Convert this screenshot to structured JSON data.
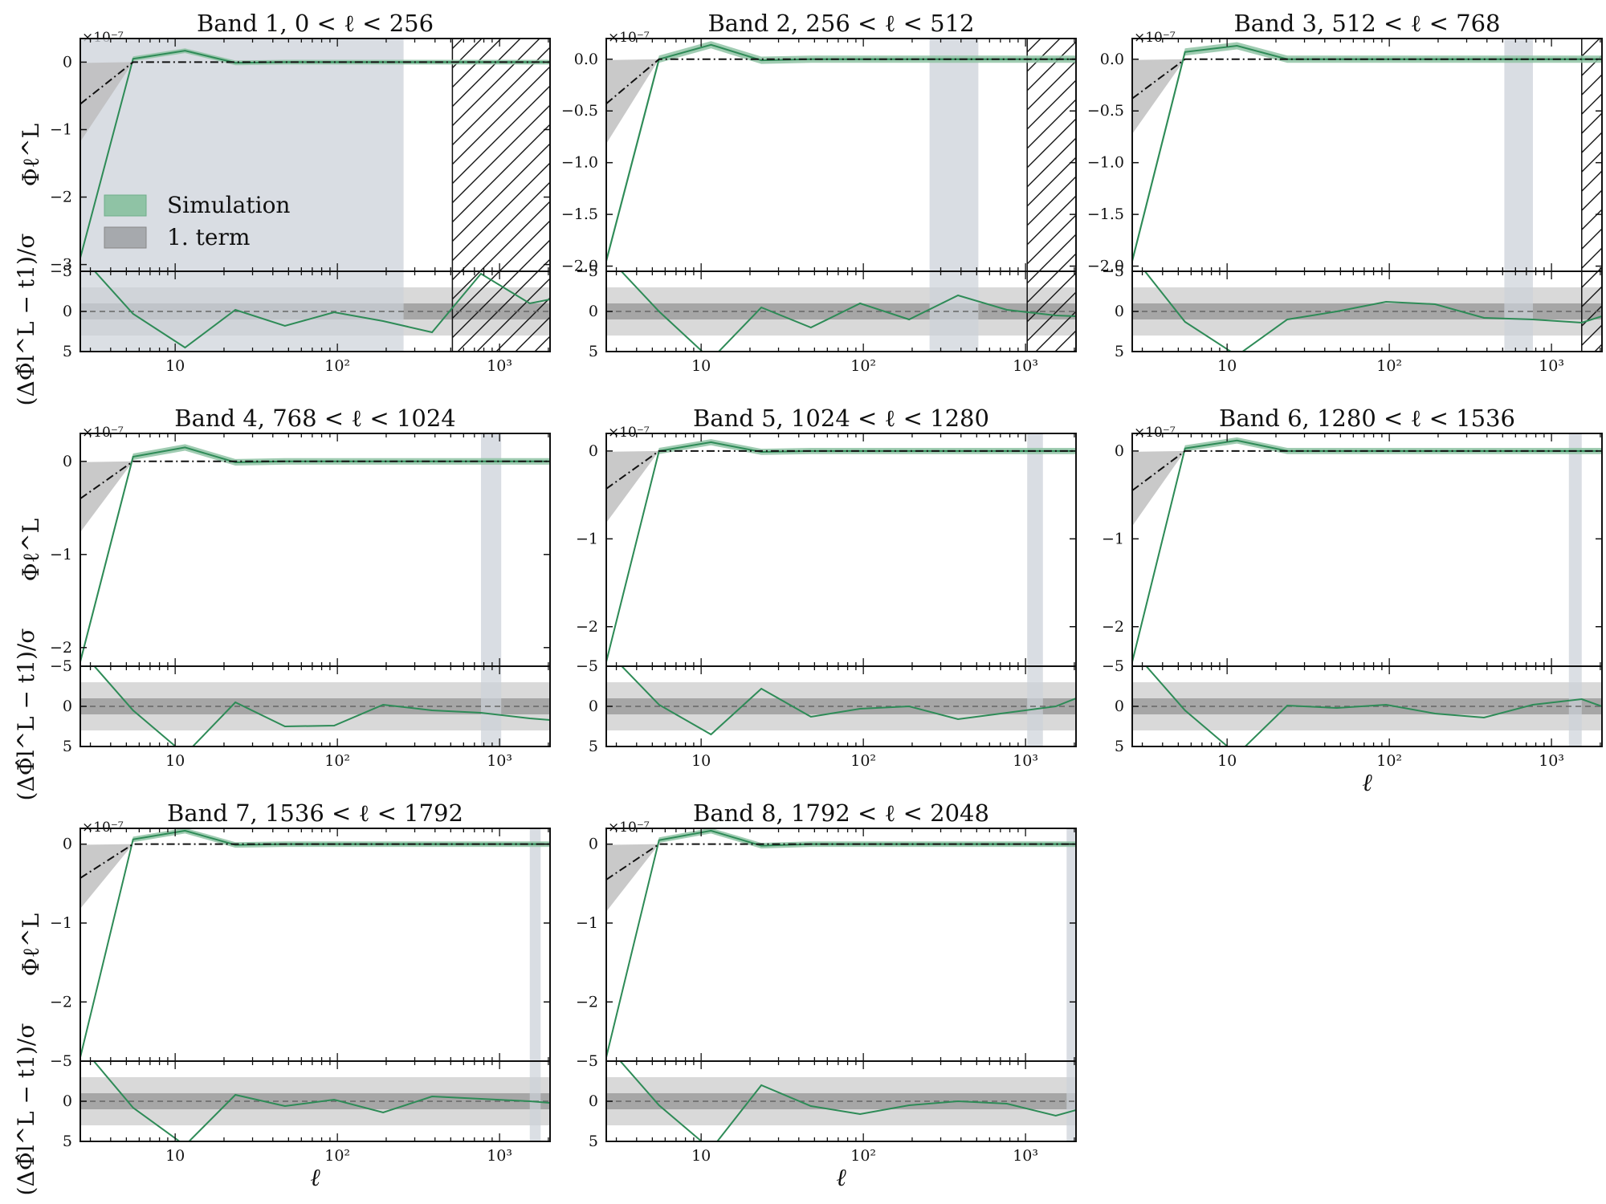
{
  "colors": {
    "simulation": "#2e8b57",
    "simulation_band": "#8fc3a5",
    "first_term": "#555555",
    "first_term_band": "#bbbbbb",
    "mask_shade": "#ccd1d9",
    "sigma_inner": "#a6a6a6",
    "sigma_outer": "#d9d9d9"
  },
  "legend": {
    "simulation": "Simulation",
    "first_term": "1. term"
  },
  "chart_data": [
    {
      "type": "line",
      "title": "Band 1, 0 < ℓ < 256",
      "band": [
        0,
        256
      ],
      "hatch_from": 512,
      "top_ylim": [
        -3.1,
        0.35
      ],
      "top_yticks": [
        0,
        -1,
        -2,
        -3
      ],
      "multiplier": "×10⁻⁷",
      "x_range": [
        2.6,
        2048
      ],
      "xticks": [
        "10",
        "10²",
        "10³"
      ],
      "resid_yticks": [
        "−5",
        "0",
        "5"
      ],
      "resid_ylim": [
        -5,
        5
      ],
      "ylabel_top": "Φℓ^L",
      "ylabel_bottom": "(ΔΦ̂l^L − t1)/σ",
      "xlabel": "",
      "x": [
        2.5,
        5.5,
        11.5,
        23.5,
        47.5,
        95.5,
        191.5,
        383.5,
        767.5,
        1535.5,
        2048
      ],
      "simulation": [
        -2.9,
        0.05,
        0.17,
        -0.01,
        0.0,
        0.0,
        0.0,
        0.0,
        0.0,
        0.0,
        0.0
      ],
      "first_term": [
        -0.62,
        0.0,
        0.0,
        0.0,
        0.0,
        0.0,
        0.0,
        0.0,
        0.0,
        0.0,
        0.0
      ],
      "residuals": [
        -7,
        0.3,
        4.5,
        -0.2,
        1.8,
        0.1,
        1.2,
        2.6,
        -4.7,
        -1.0,
        -1.5
      ],
      "show_legend": true,
      "show_xlabel": false
    },
    {
      "type": "line",
      "title": "Band 2, 256 < ℓ < 512",
      "band": [
        256,
        512
      ],
      "hatch_from": 1024,
      "top_ylim": [
        -2.05,
        0.2
      ],
      "top_yticks": [
        0.0,
        -0.5,
        -1.0,
        -1.5,
        -2.0
      ],
      "multiplier": "×10⁻⁷",
      "x_range": [
        2.6,
        2048
      ],
      "xticks": [
        "10",
        "10²",
        "10³"
      ],
      "resid_yticks": [
        "−5",
        "0",
        "5"
      ],
      "resid_ylim": [
        -5,
        5
      ],
      "ylabel_top": "",
      "ylabel_bottom": "",
      "xlabel": "",
      "x": [
        2.5,
        5.5,
        11.5,
        23.5,
        47.5,
        95.5,
        191.5,
        383.5,
        767.5,
        1535.5,
        2048
      ],
      "simulation": [
        -1.95,
        0.0,
        0.14,
        -0.01,
        0.0,
        0.0,
        0.0,
        0.0,
        0.0,
        0.0,
        0.0
      ],
      "first_term": [
        -0.43,
        0.0,
        0.0,
        0.0,
        0.0,
        0.0,
        0.0,
        0.0,
        0.0,
        0.0,
        0.0
      ],
      "residuals": [
        -7,
        0.0,
        6.0,
        -0.5,
        2.0,
        -1.0,
        1.0,
        -2.0,
        -0.2,
        0.5,
        0.6
      ],
      "show_legend": false,
      "show_xlabel": false
    },
    {
      "type": "line",
      "title": "Band 3, 512 < ℓ < 768",
      "band": [
        512,
        768
      ],
      "hatch_from": 1536,
      "top_ylim": [
        -2.05,
        0.2
      ],
      "top_yticks": [
        0.0,
        -0.5,
        -1.0,
        -1.5,
        -2.0
      ],
      "multiplier": "×10⁻⁷",
      "x_range": [
        2.6,
        2048
      ],
      "xticks": [
        "10",
        "10²",
        "10³"
      ],
      "resid_yticks": [
        "−5",
        "0",
        "5"
      ],
      "resid_ylim": [
        -5,
        5
      ],
      "ylabel_top": "",
      "ylabel_bottom": "",
      "xlabel": "",
      "x": [
        2.5,
        5.5,
        11.5,
        23.5,
        47.5,
        95.5,
        191.5,
        383.5,
        767.5,
        1535.5,
        2048
      ],
      "simulation": [
        -1.95,
        0.07,
        0.13,
        0.0,
        0.0,
        0.0,
        0.0,
        0.0,
        0.0,
        0.0,
        0.0
      ],
      "first_term": [
        -0.38,
        0.0,
        0.0,
        0.0,
        0.0,
        0.0,
        0.0,
        0.0,
        0.0,
        0.0,
        0.0
      ],
      "residuals": [
        -7,
        1.3,
        5.5,
        1.0,
        0.0,
        -1.2,
        -0.9,
        0.8,
        1.0,
        1.4,
        0.6
      ],
      "show_legend": false,
      "show_xlabel": false
    },
    {
      "type": "line",
      "title": "Band 4, 768 < ℓ < 1024",
      "band": [
        768,
        1024
      ],
      "hatch_from": null,
      "top_ylim": [
        -2.2,
        0.3
      ],
      "top_yticks": [
        0,
        -1,
        -2
      ],
      "multiplier": "×10⁻⁷",
      "x_range": [
        2.6,
        2048
      ],
      "xticks": [
        "10",
        "10²",
        "10³"
      ],
      "resid_yticks": [
        "−5",
        "0",
        "5"
      ],
      "resid_ylim": [
        -5,
        5
      ],
      "ylabel_top": "Φℓ^L",
      "ylabel_bottom": "(ΔΦ̂l^L − t1)/σ",
      "xlabel": "",
      "x": [
        2.5,
        5.5,
        11.5,
        23.5,
        47.5,
        95.5,
        191.5,
        383.5,
        767.5,
        1535.5,
        2048
      ],
      "simulation": [
        -2.15,
        0.05,
        0.15,
        -0.01,
        0.0,
        0.0,
        0.0,
        0.0,
        0.0,
        0.0,
        0.0
      ],
      "first_term": [
        -0.4,
        0.0,
        0.0,
        0.0,
        0.0,
        0.0,
        0.0,
        0.0,
        0.0,
        0.0,
        0.0
      ],
      "residuals": [
        -7,
        0.5,
        6.0,
        -0.5,
        2.5,
        2.4,
        -0.2,
        0.5,
        0.8,
        1.5,
        1.7
      ],
      "show_legend": false,
      "show_xlabel": false
    },
    {
      "type": "line",
      "title": "Band 5, 1024 < ℓ < 1280",
      "band": [
        1024,
        1280
      ],
      "hatch_from": null,
      "top_ylim": [
        -2.45,
        0.2
      ],
      "top_yticks": [
        0,
        -1,
        -2
      ],
      "multiplier": "×10⁻⁷",
      "x_range": [
        2.6,
        2048
      ],
      "xticks": [
        "10",
        "10²",
        "10³"
      ],
      "resid_yticks": [
        "−5",
        "0",
        "5"
      ],
      "resid_ylim": [
        -5,
        5
      ],
      "ylabel_top": "",
      "ylabel_bottom": "",
      "xlabel": "",
      "x": [
        2.5,
        5.5,
        11.5,
        23.5,
        47.5,
        95.5,
        191.5,
        383.5,
        767.5,
        1535.5,
        2048
      ],
      "simulation": [
        -2.4,
        0.0,
        0.1,
        -0.01,
        0.0,
        0.0,
        0.0,
        0.0,
        0.0,
        0.0,
        0.0
      ],
      "first_term": [
        -0.43,
        0.0,
        0.0,
        0.0,
        0.0,
        0.0,
        0.0,
        0.0,
        0.0,
        0.0,
        0.0
      ],
      "residuals": [
        -7,
        -0.2,
        3.5,
        -2.2,
        1.3,
        0.3,
        0.0,
        1.6,
        0.8,
        0.0,
        -1.0
      ],
      "show_legend": false,
      "show_xlabel": false
    },
    {
      "type": "line",
      "title": "Band 6, 1280 < ℓ < 1536",
      "band": [
        1280,
        1536
      ],
      "hatch_from": null,
      "top_ylim": [
        -2.45,
        0.2
      ],
      "top_yticks": [
        0,
        -1,
        -2
      ],
      "multiplier": "×10⁻⁷",
      "x_range": [
        2.6,
        2048
      ],
      "xticks": [
        "10",
        "10²",
        "10³"
      ],
      "resid_yticks": [
        "−5",
        "0",
        "5"
      ],
      "resid_ylim": [
        -5,
        5
      ],
      "ylabel_top": "",
      "ylabel_bottom": "",
      "xlabel": "ℓ",
      "x": [
        2.5,
        5.5,
        11.5,
        23.5,
        47.5,
        95.5,
        191.5,
        383.5,
        767.5,
        1535.5,
        2048
      ],
      "simulation": [
        -2.4,
        0.03,
        0.12,
        0.0,
        0.0,
        0.0,
        0.0,
        0.0,
        0.0,
        0.0,
        0.0
      ],
      "first_term": [
        -0.45,
        0.0,
        0.0,
        0.0,
        0.0,
        0.0,
        0.0,
        0.0,
        0.0,
        0.0,
        0.0
      ],
      "residuals": [
        -7,
        0.5,
        6.0,
        -0.1,
        0.2,
        -0.2,
        0.9,
        1.4,
        -0.2,
        -0.9,
        0.0
      ],
      "show_legend": false,
      "show_xlabel": true
    },
    {
      "type": "line",
      "title": "Band 7, 1536 < ℓ < 1792",
      "band": [
        1536,
        1792
      ],
      "hatch_from": null,
      "top_ylim": [
        -2.75,
        0.2
      ],
      "top_yticks": [
        0,
        -1,
        -2
      ],
      "multiplier": "×10⁻⁷",
      "x_range": [
        2.6,
        2048
      ],
      "xticks": [
        "10",
        "10²",
        "10³"
      ],
      "resid_yticks": [
        "−5",
        "0",
        "5"
      ],
      "resid_ylim": [
        -5,
        5
      ],
      "ylabel_top": "Φℓ^L",
      "ylabel_bottom": "(ΔΦ̂l^L − t1)/σ",
      "xlabel": "ℓ",
      "x": [
        2.5,
        5.5,
        11.5,
        23.5,
        47.5,
        95.5,
        191.5,
        383.5,
        767.5,
        1535.5,
        2048
      ],
      "simulation": [
        -2.7,
        0.06,
        0.17,
        -0.01,
        0.0,
        0.0,
        0.0,
        0.0,
        0.0,
        0.0,
        0.0
      ],
      "first_term": [
        -0.43,
        0.0,
        0.0,
        0.0,
        0.0,
        0.0,
        0.0,
        0.0,
        0.0,
        0.0,
        0.0
      ],
      "residuals": [
        -7,
        0.8,
        5.5,
        -0.8,
        0.6,
        -0.2,
        1.4,
        -0.6,
        -0.3,
        0.0,
        0.2
      ],
      "show_legend": false,
      "show_xlabel": true
    },
    {
      "type": "line",
      "title": "Band 8, 1792 < ℓ < 2048",
      "band": [
        1792,
        2048
      ],
      "hatch_from": null,
      "top_ylim": [
        -2.75,
        0.2
      ],
      "top_yticks": [
        0,
        -1,
        -2
      ],
      "multiplier": "×10⁻⁷",
      "x_range": [
        2.6,
        2048
      ],
      "xticks": [
        "10",
        "10²",
        "10³"
      ],
      "resid_yticks": [
        "−5",
        "0",
        "5"
      ],
      "resid_ylim": [
        -5,
        5
      ],
      "ylabel_top": "",
      "ylabel_bottom": "",
      "xlabel": "ℓ",
      "x": [
        2.5,
        5.5,
        11.5,
        23.5,
        47.5,
        95.5,
        191.5,
        383.5,
        767.5,
        1535.5,
        2048
      ],
      "simulation": [
        -2.7,
        0.05,
        0.17,
        -0.02,
        0.0,
        0.0,
        0.0,
        0.0,
        0.0,
        0.0,
        0.0
      ],
      "first_term": [
        -0.45,
        0.0,
        0.0,
        0.0,
        0.0,
        0.0,
        0.0,
        0.0,
        0.0,
        0.0,
        0.0
      ],
      "residuals": [
        -7,
        0.5,
        6.0,
        -2.0,
        0.6,
        1.6,
        0.5,
        0.0,
        0.3,
        1.8,
        1.1
      ],
      "show_legend": false,
      "show_xlabel": true
    }
  ]
}
